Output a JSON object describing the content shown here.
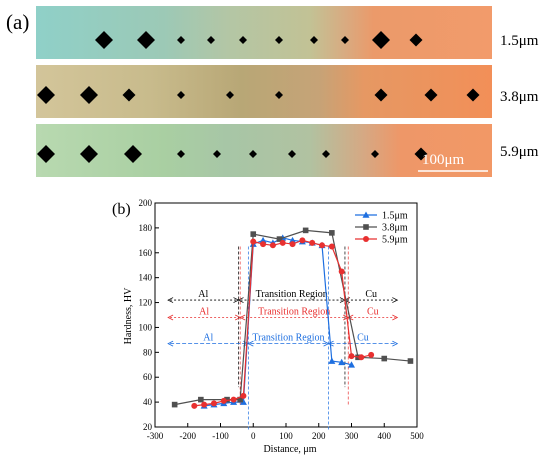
{
  "panel_a": {
    "label": "(a)",
    "scale_bar": "100μm",
    "strips": [
      {
        "label": "1.5μm",
        "indent_sizes": [
          "large",
          "large",
          "small",
          "small",
          "small",
          "small",
          "small",
          "small",
          "large",
          "medium",
          "medium"
        ]
      },
      {
        "label": "3.8μm",
        "indent_sizes": [
          "large",
          "large",
          "medium",
          "small",
          "small",
          "small",
          "medium",
          "medium",
          "medium"
        ]
      },
      {
        "label": "5.9μm",
        "indent_sizes": [
          "large",
          "large",
          "large",
          "small",
          "small",
          "small",
          "small",
          "small",
          "small",
          "medium",
          "large"
        ]
      }
    ]
  },
  "panel_b": {
    "label": "(b)"
  },
  "chart_data": {
    "type": "line",
    "xlabel": "Distance, μm",
    "ylabel": "Hardness, HV",
    "xlim": [
      -300,
      500
    ],
    "ylim": [
      20,
      200
    ],
    "x_ticks": [
      "-300",
      "-200",
      "-100",
      "0",
      "100",
      "200",
      "300",
      "400",
      "500"
    ],
    "y_ticks": [
      "20",
      "40",
      "60",
      "80",
      "100",
      "120",
      "140",
      "160",
      "180",
      "200"
    ],
    "legend_position": "top-right",
    "series": [
      {
        "name": "1.5μm",
        "color": "#1e6fe0",
        "marker": "triangle",
        "x": [
          -150,
          -120,
          -90,
          -60,
          -30,
          0,
          30,
          60,
          90,
          120,
          150,
          180,
          210,
          240,
          270,
          300
        ],
        "y": [
          37,
          38,
          39,
          40,
          40,
          167,
          170,
          168,
          172,
          170,
          169,
          168,
          166,
          73,
          72,
          70
        ]
      },
      {
        "name": "3.8μm",
        "color": "#505050",
        "marker": "square",
        "x": [
          -240,
          -160,
          -80,
          -40,
          0,
          80,
          160,
          240,
          320,
          400,
          480
        ],
        "y": [
          38,
          42,
          42,
          42,
          175,
          171,
          178,
          176,
          76,
          75,
          73
        ]
      },
      {
        "name": "5.9μm",
        "color": "#e83030",
        "marker": "circle",
        "x": [
          -180,
          -150,
          -120,
          -90,
          -60,
          -30,
          0,
          30,
          60,
          90,
          120,
          150,
          180,
          210,
          240,
          270,
          300,
          330,
          360
        ],
        "y": [
          37,
          38,
          39,
          41,
          42,
          45,
          169,
          167,
          166,
          168,
          167,
          170,
          168,
          166,
          165,
          145,
          77,
          76,
          78
        ]
      }
    ],
    "annotations": [
      {
        "row": "black",
        "color": "#000000",
        "left": "Al",
        "middle": "Transition Region",
        "right": "Cu"
      },
      {
        "row": "red",
        "color": "#e83030",
        "left": "Al",
        "middle": "Transition Region",
        "right": "Cu"
      },
      {
        "row": "blue",
        "color": "#1e6fe0",
        "left": "Al",
        "middle": "Transition Region",
        "right": "Cu"
      }
    ]
  }
}
